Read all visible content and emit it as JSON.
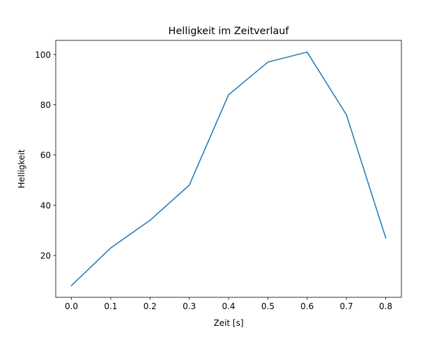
{
  "chart_data": {
    "type": "line",
    "title": "Helligkeit im Zeitverlauf",
    "xlabel": "Zeit [s]",
    "ylabel": "Helligkeit",
    "x": [
      0.0,
      0.1,
      0.2,
      0.3,
      0.4,
      0.5,
      0.6,
      0.7,
      0.8
    ],
    "series": [
      {
        "name": "Helligkeit",
        "values": [
          8,
          23,
          34,
          48,
          84,
          97,
          101,
          76,
          27
        ],
        "color": "#1f77b4"
      }
    ],
    "xlim": [
      -0.04,
      0.84
    ],
    "ylim": [
      3.35,
      105.65
    ],
    "xticks": [
      0.0,
      0.1,
      0.2,
      0.3,
      0.4,
      0.5,
      0.6,
      0.7,
      0.8
    ],
    "xtick_labels": [
      "0.0",
      "0.1",
      "0.2",
      "0.3",
      "0.4",
      "0.5",
      "0.6",
      "0.7",
      "0.8"
    ],
    "yticks": [
      20,
      40,
      60,
      80,
      100
    ],
    "ytick_labels": [
      "20",
      "40",
      "60",
      "80",
      "100"
    ],
    "grid": false,
    "legend": "none"
  }
}
